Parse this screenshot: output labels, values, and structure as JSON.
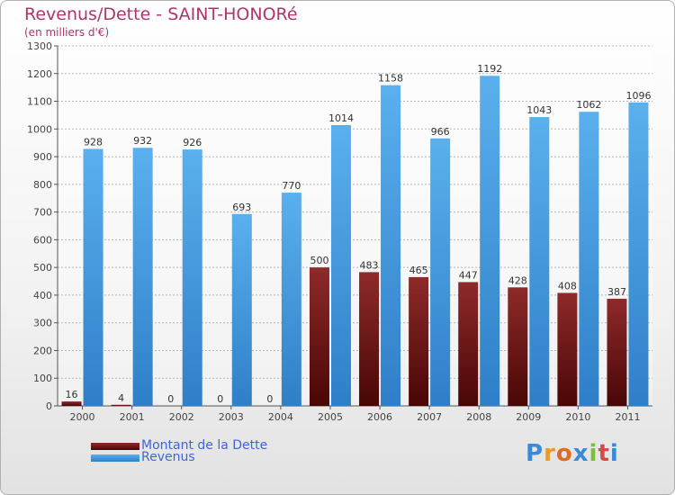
{
  "chart_data": {
    "type": "bar",
    "title": "Revenus/Dette - SAINT-HONORé",
    "subtitle": "(en milliers d'€)",
    "xlabel": "",
    "ylabel": "",
    "ylim": [
      0,
      1300
    ],
    "yticks": [
      0,
      100,
      200,
      300,
      400,
      500,
      600,
      700,
      800,
      900,
      1000,
      1100,
      1200,
      1300
    ],
    "grid": true,
    "categories": [
      "2000",
      "2001",
      "2002",
      "2003",
      "2004",
      "2005",
      "2006",
      "2007",
      "2008",
      "2009",
      "2010",
      "2011"
    ],
    "series": [
      {
        "name": "Montant de la Dette",
        "color": "#7a1010",
        "values": [
          16,
          4,
          0,
          0,
          0,
          500,
          483,
          465,
          447,
          428,
          408,
          387
        ]
      },
      {
        "name": "Revenus",
        "color": "#4aa0e6",
        "values": [
          928,
          932,
          926,
          693,
          770,
          1014,
          1158,
          966,
          1192,
          1043,
          1062,
          1096
        ]
      }
    ],
    "legend_position": "bottom-left"
  },
  "logo": {
    "letters": [
      "P",
      "r",
      "o",
      "x",
      "i",
      "t",
      "i"
    ],
    "colors": [
      "#3a8ad8",
      "#e89a2a",
      "#e06a2a",
      "#3a8ad8",
      "#7cbf3a",
      "#d84a4a",
      "#3a8ad8"
    ]
  }
}
